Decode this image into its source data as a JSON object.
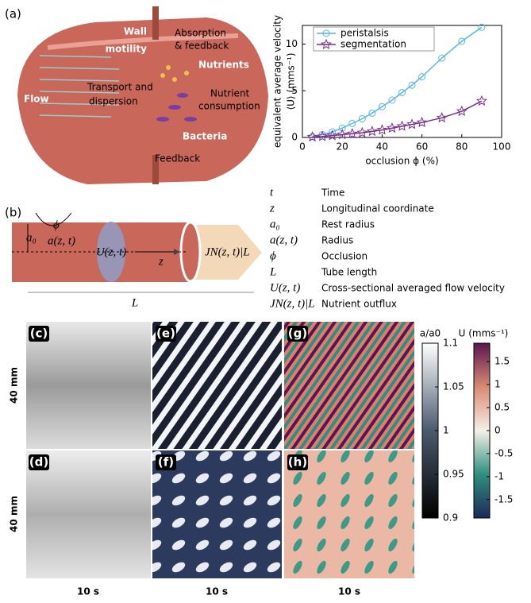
{
  "chart_data": {
    "type": "line",
    "xlabel": "occlusion ϕ (%)",
    "ylabel": [
      "equivalent average velocity",
      "⟨U⟩ (mms⁻¹)"
    ],
    "xlim": [
      0,
      100
    ],
    "xticks": [
      0,
      20,
      40,
      60,
      80,
      100
    ],
    "ylim": [
      0,
      12
    ],
    "yticks": [
      0,
      5,
      10
    ],
    "legend": "upper-left",
    "x": [
      5,
      10,
      15,
      20,
      25,
      30,
      35,
      40,
      45,
      50,
      55,
      60,
      70,
      80,
      90
    ],
    "series": [
      {
        "name": "peristalsis",
        "color": "#56b4e9",
        "marker": "circle",
        "values": [
          0.1,
          0.3,
          0.6,
          1.0,
          1.5,
          2.0,
          2.6,
          3.3,
          4.0,
          4.8,
          5.6,
          6.5,
          8.5,
          10.3,
          11.8
        ]
      },
      {
        "name": "segmentation",
        "color": "#7b2d8e",
        "marker": "star",
        "values": [
          0.05,
          0.1,
          0.2,
          0.3,
          0.4,
          0.5,
          0.65,
          0.8,
          1.0,
          1.2,
          1.4,
          1.6,
          2.1,
          2.8,
          3.9
        ]
      }
    ]
  },
  "panel_a": {
    "label": "(a)",
    "wall": "Wall",
    "motility": "motility",
    "absorption": "Absorption",
    "and_feedback": "& feedback",
    "nutrients": "Nutrients",
    "flow": "Flow",
    "transport": "Transport and",
    "dispersion": "dispersion",
    "nutrient": "Nutrient",
    "consumption": "consumption",
    "bacteria": "Bacteria",
    "feedback": "Feedback"
  },
  "panel_b": {
    "label": "(b)",
    "a0": "a₀",
    "phi": "ϕ",
    "a": "a(z, t)",
    "U": "U(z, t)",
    "z": "z",
    "J": "JN(z, t)|L",
    "L": "L",
    "symbols": [
      [
        "t",
        "Time"
      ],
      [
        "z",
        "Longitudinal coordinate"
      ],
      [
        "a₀",
        "Rest radius"
      ],
      [
        "a(z, t)",
        "Radius"
      ],
      [
        "ϕ",
        "Occlusion"
      ],
      [
        "L",
        "Tube length"
      ],
      [
        "U(z, t)",
        "Cross-sectional averaged flow velocity"
      ],
      [
        "JN(z, t)|L",
        "Nutrient outflux"
      ]
    ]
  },
  "maps": {
    "labels": [
      "(c)",
      "(d)",
      "(e)",
      "(f)",
      "(g)",
      "(h)"
    ],
    "space": [
      "40 mm",
      "40 mm"
    ],
    "time": [
      "10 s",
      "10 s",
      "10 s"
    ]
  },
  "colorbars": [
    {
      "label": "a/a0",
      "lim": [
        0.9,
        1.1
      ],
      "ticks": [
        0.9,
        0.95,
        1,
        1.05,
        1.1
      ],
      "colors": [
        "#000000",
        "#4a5a6e",
        "#ffffff"
      ]
    },
    {
      "label": "U (mms⁻¹)",
      "lim": [
        -1.9,
        1.9
      ],
      "ticks": [
        -1.5,
        -1,
        -0.5,
        0,
        0.5,
        1,
        1.5
      ],
      "colors": [
        "#1c2a5a",
        "#2f8f7f",
        "#f4efe8",
        "#d98a72",
        "#5a1650"
      ]
    }
  ]
}
